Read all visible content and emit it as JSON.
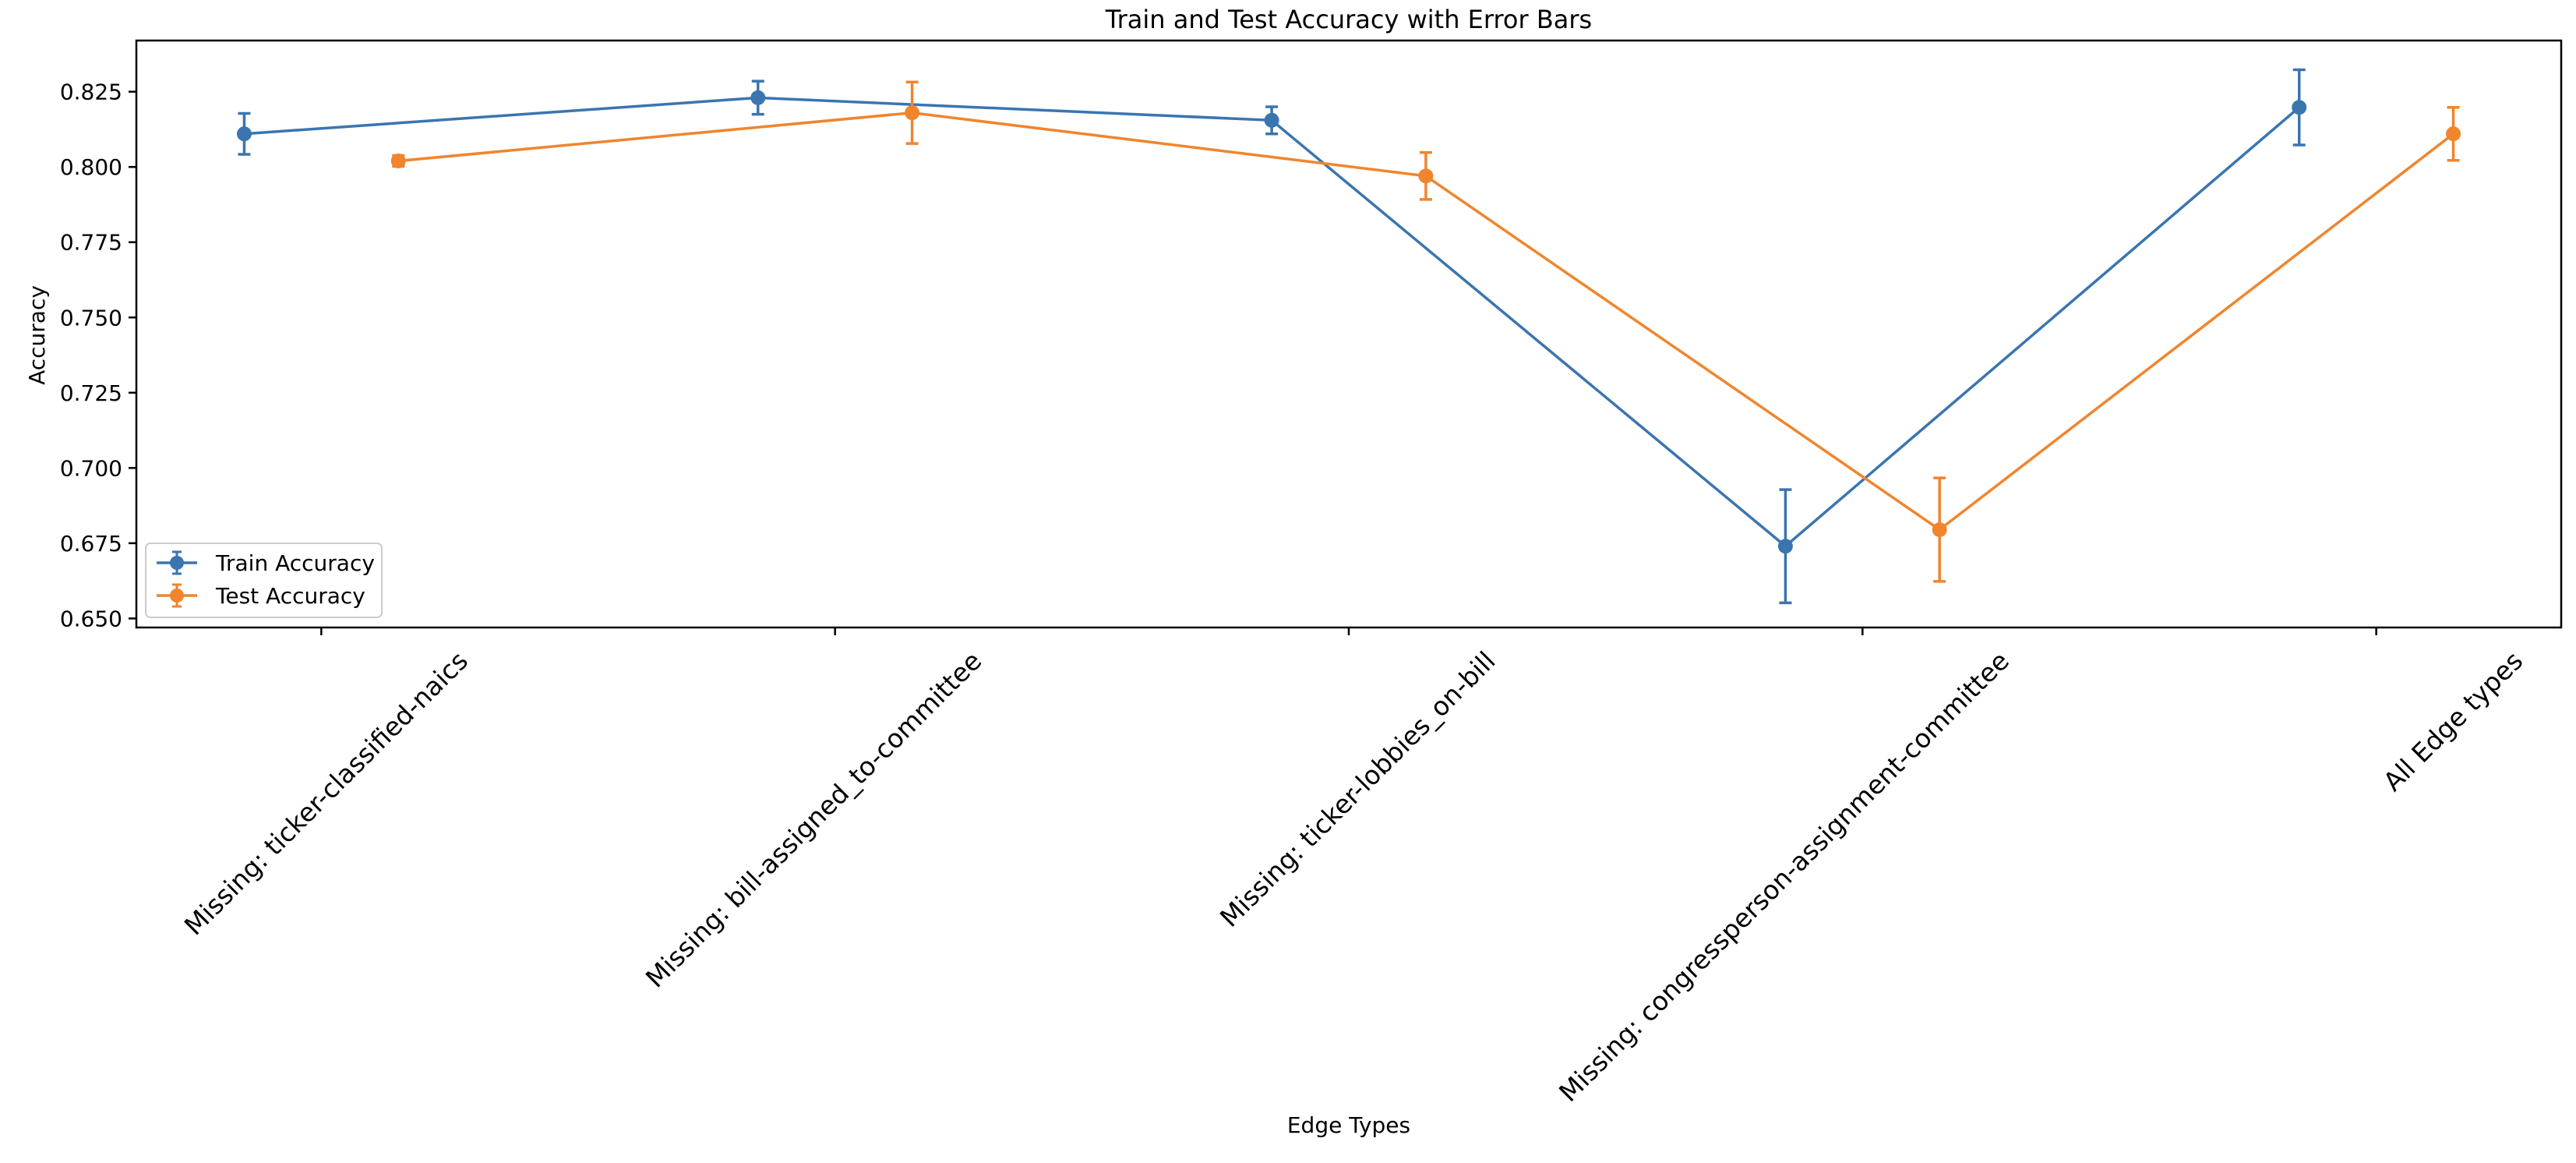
{
  "chart_data": {
    "type": "line",
    "title": "Train and Test Accuracy with Error Bars",
    "xlabel": "Edge Types",
    "ylabel": "Accuracy",
    "categories": [
      "Missing: ticker-classified-naics",
      "Missing: bill-assigned_to-committee",
      "Missing: ticker-lobbies_on-bill",
      "Missing: congressperson-assignment-committee",
      "All Edge types"
    ],
    "ylim": [
      0.647,
      0.842
    ],
    "yticks": [
      0.65,
      0.675,
      0.7,
      0.725,
      0.75,
      0.775,
      0.8,
      0.825
    ],
    "ytick_labels": [
      "0.650",
      "0.675",
      "0.700",
      "0.725",
      "0.750",
      "0.775",
      "0.800",
      "0.825"
    ],
    "x_offset": 0.15,
    "grid": false,
    "legend_position": "lower-left",
    "series": [
      {
        "name": "Train Accuracy",
        "color": "#3a75b0",
        "offset": -0.15,
        "values": [
          0.811,
          0.823,
          0.8155,
          0.674,
          0.8198
        ],
        "errors": [
          0.0068,
          0.0055,
          0.0045,
          0.0188,
          0.0125
        ]
      },
      {
        "name": "Test Accuracy",
        "color": "#f0852d",
        "offset": 0.15,
        "values": [
          0.802,
          0.818,
          0.797,
          0.6795,
          0.811
        ],
        "errors": [
          0.0018,
          0.0102,
          0.0078,
          0.0172,
          0.0088
        ]
      }
    ]
  }
}
